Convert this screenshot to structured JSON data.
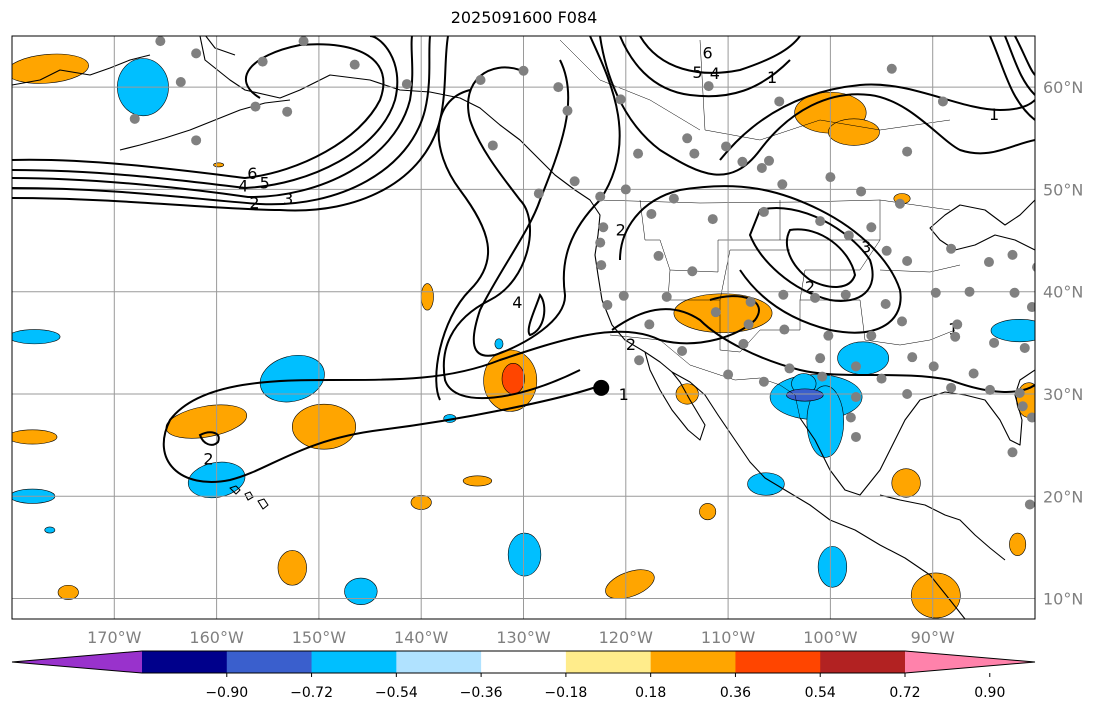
{
  "title": "2025091600 F084",
  "map": {
    "lon_min": -180,
    "lon_max": -80,
    "lat_min": 8,
    "lat_max": 65,
    "lon_ticks": [
      {
        "value": -170,
        "label": "170°W"
      },
      {
        "value": -160,
        "label": "160°W"
      },
      {
        "value": -150,
        "label": "150°W"
      },
      {
        "value": -140,
        "label": "140°W"
      },
      {
        "value": -130,
        "label": "130°W"
      },
      {
        "value": -120,
        "label": "120°W"
      },
      {
        "value": -110,
        "label": "110°W"
      },
      {
        "value": -100,
        "label": "100°W"
      },
      {
        "value": -90,
        "label": "90°W"
      }
    ],
    "lat_ticks": [
      {
        "value": 10,
        "label": "10°N"
      },
      {
        "value": 20,
        "label": "20°N"
      },
      {
        "value": 30,
        "label": "30°N"
      },
      {
        "value": 40,
        "label": "40°N"
      },
      {
        "value": 50,
        "label": "50°N"
      },
      {
        "value": 60,
        "label": "60°N"
      }
    ],
    "contour_labels": [
      {
        "text": "6",
        "lon": -156.5,
        "lat": 51.5
      },
      {
        "text": "5",
        "lon": -155.3,
        "lat": 50.6
      },
      {
        "text": "4",
        "lon": -157.4,
        "lat": 50.3
      },
      {
        "text": "3",
        "lon": -153.0,
        "lat": 49.0
      },
      {
        "text": "2",
        "lon": -156.3,
        "lat": 48.6
      },
      {
        "text": "6",
        "lon": -112.0,
        "lat": 63.3
      },
      {
        "text": "5",
        "lon": -113.0,
        "lat": 61.4
      },
      {
        "text": "4",
        "lon": -111.3,
        "lat": 61.3
      },
      {
        "text": "1",
        "lon": -105.7,
        "lat": 60.9
      },
      {
        "text": "4",
        "lon": -130.6,
        "lat": 38.9
      },
      {
        "text": "2",
        "lon": -119.5,
        "lat": 34.8
      },
      {
        "text": "1",
        "lon": -120.2,
        "lat": 29.9
      },
      {
        "text": "2",
        "lon": -160.8,
        "lat": 23.6
      },
      {
        "text": "1",
        "lon": -84.0,
        "lat": 57.3
      },
      {
        "text": "3",
        "lon": -96.5,
        "lat": 44.3
      },
      {
        "text": "2",
        "lon": -102.0,
        "lat": 40.4
      },
      {
        "text": "1",
        "lon": -88.0,
        "lat": 36.3
      },
      {
        "text": "2",
        "lon": -120.5,
        "lat": 46.0
      }
    ],
    "marker": {
      "lon": -122.4,
      "lat": 30.6
    },
    "stations": [
      [
        -165.5,
        64.5
      ],
      [
        -162.0,
        63.3
      ],
      [
        -155.5,
        62.5
      ],
      [
        -151.5,
        64.5
      ],
      [
        -146.5,
        62.2
      ],
      [
        -141.4,
        60.3
      ],
      [
        -134.2,
        60.7
      ],
      [
        -126.6,
        60.0
      ],
      [
        -120.5,
        58.8
      ],
      [
        -168.0,
        56.9
      ],
      [
        -162.0,
        54.8
      ],
      [
        -156.2,
        58.1
      ],
      [
        -153.1,
        57.6
      ],
      [
        -163.5,
        60.5
      ],
      [
        -111.9,
        60.1
      ],
      [
        -110.2,
        54.2
      ],
      [
        -118.8,
        53.5
      ],
      [
        -114.0,
        55.0
      ],
      [
        -113.3,
        53.5
      ],
      [
        -108.6,
        52.7
      ],
      [
        -106.7,
        52.1
      ],
      [
        -104.7,
        50.5
      ],
      [
        -100.0,
        51.2
      ],
      [
        -97.0,
        49.8
      ],
      [
        -93.2,
        48.6
      ],
      [
        -92.5,
        53.7
      ],
      [
        -89.0,
        58.6
      ],
      [
        -94.0,
        61.8
      ],
      [
        -106.0,
        52.8
      ],
      [
        -120.0,
        50.0
      ],
      [
        -122.5,
        49.3
      ],
      [
        -125.0,
        50.8
      ],
      [
        -115.3,
        49.1
      ],
      [
        -117.5,
        47.6
      ],
      [
        -111.5,
        47.1
      ],
      [
        -106.5,
        47.8
      ],
      [
        -101.0,
        46.9
      ],
      [
        -98.2,
        45.5
      ],
      [
        -96.0,
        46.3
      ],
      [
        -94.5,
        44.0
      ],
      [
        -92.5,
        43.0
      ],
      [
        -88.2,
        44.2
      ],
      [
        -84.5,
        42.9
      ],
      [
        -82.2,
        43.6
      ],
      [
        -79.8,
        42.4
      ],
      [
        -86.4,
        40.0
      ],
      [
        -82.0,
        39.9
      ],
      [
        -80.3,
        38.5
      ],
      [
        -89.7,
        39.9
      ],
      [
        -94.6,
        38.8
      ],
      [
        -98.5,
        39.7
      ],
      [
        -101.5,
        39.4
      ],
      [
        -104.6,
        39.7
      ],
      [
        -107.8,
        39.0
      ],
      [
        -113.5,
        42.0
      ],
      [
        -116.8,
        43.5
      ],
      [
        -122.2,
        46.3
      ],
      [
        -122.5,
        44.8
      ],
      [
        -122.4,
        42.6
      ],
      [
        -120.2,
        39.6
      ],
      [
        -116.0,
        39.5
      ],
      [
        -111.2,
        38.0
      ],
      [
        -108.0,
        36.8
      ],
      [
        -104.5,
        36.3
      ],
      [
        -100.2,
        35.7
      ],
      [
        -96.0,
        35.7
      ],
      [
        -93.0,
        37.1
      ],
      [
        -87.8,
        35.6
      ],
      [
        -84.0,
        35.0
      ],
      [
        -81.0,
        34.5
      ],
      [
        -86.0,
        32.0
      ],
      [
        -89.9,
        32.7
      ],
      [
        -92.0,
        33.6
      ],
      [
        -95.0,
        31.5
      ],
      [
        -97.5,
        32.7
      ],
      [
        -101.0,
        33.5
      ],
      [
        -104.0,
        32.5
      ],
      [
        -108.5,
        34.9
      ],
      [
        -114.5,
        34.2
      ],
      [
        -117.7,
        36.8
      ],
      [
        -110.0,
        31.9
      ],
      [
        -106.5,
        31.2
      ],
      [
        -100.8,
        31.7
      ],
      [
        -97.5,
        29.7
      ],
      [
        -92.5,
        30.0
      ],
      [
        -88.2,
        30.6
      ],
      [
        -84.4,
        30.4
      ],
      [
        -81.5,
        30.1
      ],
      [
        -80.3,
        27.7
      ],
      [
        -81.2,
        28.8
      ],
      [
        -97.5,
        25.8
      ],
      [
        -98.0,
        27.7
      ],
      [
        -82.2,
        24.3
      ],
      [
        -80.5,
        19.2
      ],
      [
        -87.6,
        36.8
      ],
      [
        -118.7,
        33.3
      ],
      [
        -121.8,
        38.7
      ],
      [
        -128.5,
        49.6
      ],
      [
        -133.0,
        54.3
      ],
      [
        -125.7,
        57.7
      ],
      [
        -130.0,
        61.6
      ],
      [
        -105.0,
        58.6
      ]
    ],
    "positive_blobs": [
      {
        "level": 0.36,
        "lon": -176.5,
        "lat": 61.8,
        "rx": 4.0,
        "ry": 1.4,
        "rot": -5
      },
      {
        "level": 0.36,
        "lon": -100.0,
        "lat": 57.5,
        "rx": 3.5,
        "ry": 2.0,
        "rot": 0
      },
      {
        "level": 0.36,
        "lon": -97.7,
        "lat": 55.6,
        "rx": 2.5,
        "ry": 1.3,
        "rot": 0
      },
      {
        "level": 0.36,
        "lon": -110.5,
        "lat": 37.9,
        "rx": 4.8,
        "ry": 1.9,
        "rot": 0
      },
      {
        "level": 0.36,
        "lon": -131.3,
        "lat": 31.3,
        "rx": 2.6,
        "ry": 3.0,
        "rot": 0
      },
      {
        "level": 0.72,
        "lon": -131.0,
        "lat": 31.5,
        "rx": 1.1,
        "ry": 1.5,
        "rot": 0
      },
      {
        "level": 0.36,
        "lon": -139.4,
        "lat": 39.5,
        "rx": 0.6,
        "ry": 1.3,
        "rot": 0
      },
      {
        "level": 0.36,
        "lon": -161.0,
        "lat": 27.3,
        "rx": 4.0,
        "ry": 1.5,
        "rot": -10
      },
      {
        "level": 0.36,
        "lon": -178.0,
        "lat": 25.8,
        "rx": 2.4,
        "ry": 0.7,
        "rot": 0
      },
      {
        "level": 0.36,
        "lon": -149.5,
        "lat": 26.8,
        "rx": 3.1,
        "ry": 2.2,
        "rot": 0
      },
      {
        "level": 0.36,
        "lon": -134.5,
        "lat": 21.5,
        "rx": 1.4,
        "ry": 0.5,
        "rot": 0
      },
      {
        "level": 0.36,
        "lon": -140.0,
        "lat": 19.4,
        "rx": 1.0,
        "ry": 0.7,
        "rot": 0
      },
      {
        "level": 0.36,
        "lon": -114.0,
        "lat": 30.0,
        "rx": 1.1,
        "ry": 1.0,
        "rot": 0
      },
      {
        "level": 0.36,
        "lon": -80.6,
        "lat": 29.4,
        "rx": 1.2,
        "ry": 1.7,
        "rot": 0
      },
      {
        "level": 0.36,
        "lon": -92.6,
        "lat": 21.3,
        "rx": 1.4,
        "ry": 1.4,
        "rot": 0
      },
      {
        "level": 0.36,
        "lon": -112.0,
        "lat": 18.5,
        "rx": 0.8,
        "ry": 0.8,
        "rot": 0
      },
      {
        "level": 0.36,
        "lon": -152.6,
        "lat": 13.0,
        "rx": 1.4,
        "ry": 1.7,
        "rot": 0
      },
      {
        "level": 0.36,
        "lon": -174.5,
        "lat": 10.6,
        "rx": 1.0,
        "ry": 0.7,
        "rot": 0
      },
      {
        "level": 0.36,
        "lon": -119.6,
        "lat": 11.4,
        "rx": 2.5,
        "ry": 1.2,
        "rot": -20
      },
      {
        "level": 0.36,
        "lon": -89.7,
        "lat": 10.3,
        "rx": 2.4,
        "ry": 2.2,
        "rot": 0
      },
      {
        "level": 0.36,
        "lon": -81.7,
        "lat": 15.3,
        "rx": 0.8,
        "ry": 1.1,
        "rot": 0
      },
      {
        "level": 0.36,
        "lon": -93.0,
        "lat": 49.1,
        "rx": 0.8,
        "ry": 0.5,
        "rot": 0
      },
      {
        "level": 0.36,
        "lon": -159.8,
        "lat": 52.4,
        "rx": 0.5,
        "ry": 0.2,
        "rot": 0
      }
    ],
    "negative_blobs": [
      {
        "level": -0.54,
        "lon": -167.2,
        "lat": 60.0,
        "rx": 2.5,
        "ry": 2.8,
        "rot": 0
      },
      {
        "level": -0.54,
        "lon": -177.8,
        "lat": 35.6,
        "rx": 2.5,
        "ry": 0.7,
        "rot": 0
      },
      {
        "level": -0.54,
        "lon": -152.6,
        "lat": 31.5,
        "rx": 3.2,
        "ry": 2.2,
        "rot": -15
      },
      {
        "level": -0.54,
        "lon": -160.0,
        "lat": 21.6,
        "rx": 2.8,
        "ry": 1.7,
        "rot": -10
      },
      {
        "level": -0.54,
        "lon": -178.0,
        "lat": 20.0,
        "rx": 2.2,
        "ry": 0.7,
        "rot": 0
      },
      {
        "level": -0.54,
        "lon": -101.4,
        "lat": 29.7,
        "rx": 4.5,
        "ry": 2.2,
        "rot": 0
      },
      {
        "level": -0.54,
        "lon": -100.5,
        "lat": 27.3,
        "rx": 1.8,
        "ry": 3.5,
        "rot": 0
      },
      {
        "level": -0.54,
        "lon": -96.8,
        "lat": 33.5,
        "rx": 2.5,
        "ry": 1.6,
        "rot": 0
      },
      {
        "level": -0.54,
        "lon": -102.6,
        "lat": 31.0,
        "rx": 1.2,
        "ry": 1.0,
        "rot": 0
      },
      {
        "level": -0.54,
        "lon": -81.5,
        "lat": 36.2,
        "rx": 2.8,
        "ry": 1.1,
        "rot": 0
      },
      {
        "level": -0.54,
        "lon": -129.9,
        "lat": 14.3,
        "rx": 1.6,
        "ry": 2.1,
        "rot": 0
      },
      {
        "level": -0.54,
        "lon": -99.8,
        "lat": 13.1,
        "rx": 1.4,
        "ry": 2.0,
        "rot": 0
      },
      {
        "level": -0.54,
        "lon": -145.9,
        "lat": 10.7,
        "rx": 1.6,
        "ry": 1.3,
        "rot": 0
      },
      {
        "level": -0.54,
        "lon": -106.3,
        "lat": 21.2,
        "rx": 1.8,
        "ry": 1.1,
        "rot": 0
      },
      {
        "level": -0.54,
        "lon": -132.4,
        "lat": 34.9,
        "rx": 0.4,
        "ry": 0.5,
        "rot": 0
      },
      {
        "level": -0.54,
        "lon": -137.2,
        "lat": 27.6,
        "rx": 0.6,
        "ry": 0.4,
        "rot": 0
      },
      {
        "level": -0.54,
        "lon": -176.3,
        "lat": 16.7,
        "rx": 0.5,
        "ry": 0.3,
        "rot": 0
      },
      {
        "level": -0.72,
        "lon": -102.5,
        "lat": 29.9,
        "rx": 1.8,
        "ry": 0.6,
        "rot": 0
      }
    ]
  },
  "colorbar": {
    "colors": [
      "#9932cc",
      "#00008b",
      "#3a5fcd",
      "#00bfff",
      "#b0e2ff",
      "#ffffff",
      "#ffec8b",
      "#ffa500",
      "#ff4500",
      "#b22222",
      "#ff82ab"
    ],
    "ticks": [
      "−0.90",
      "−0.72",
      "−0.54",
      "−0.36",
      "−0.18",
      "0.18",
      "0.36",
      "0.54",
      "0.72",
      "0.90"
    ]
  }
}
